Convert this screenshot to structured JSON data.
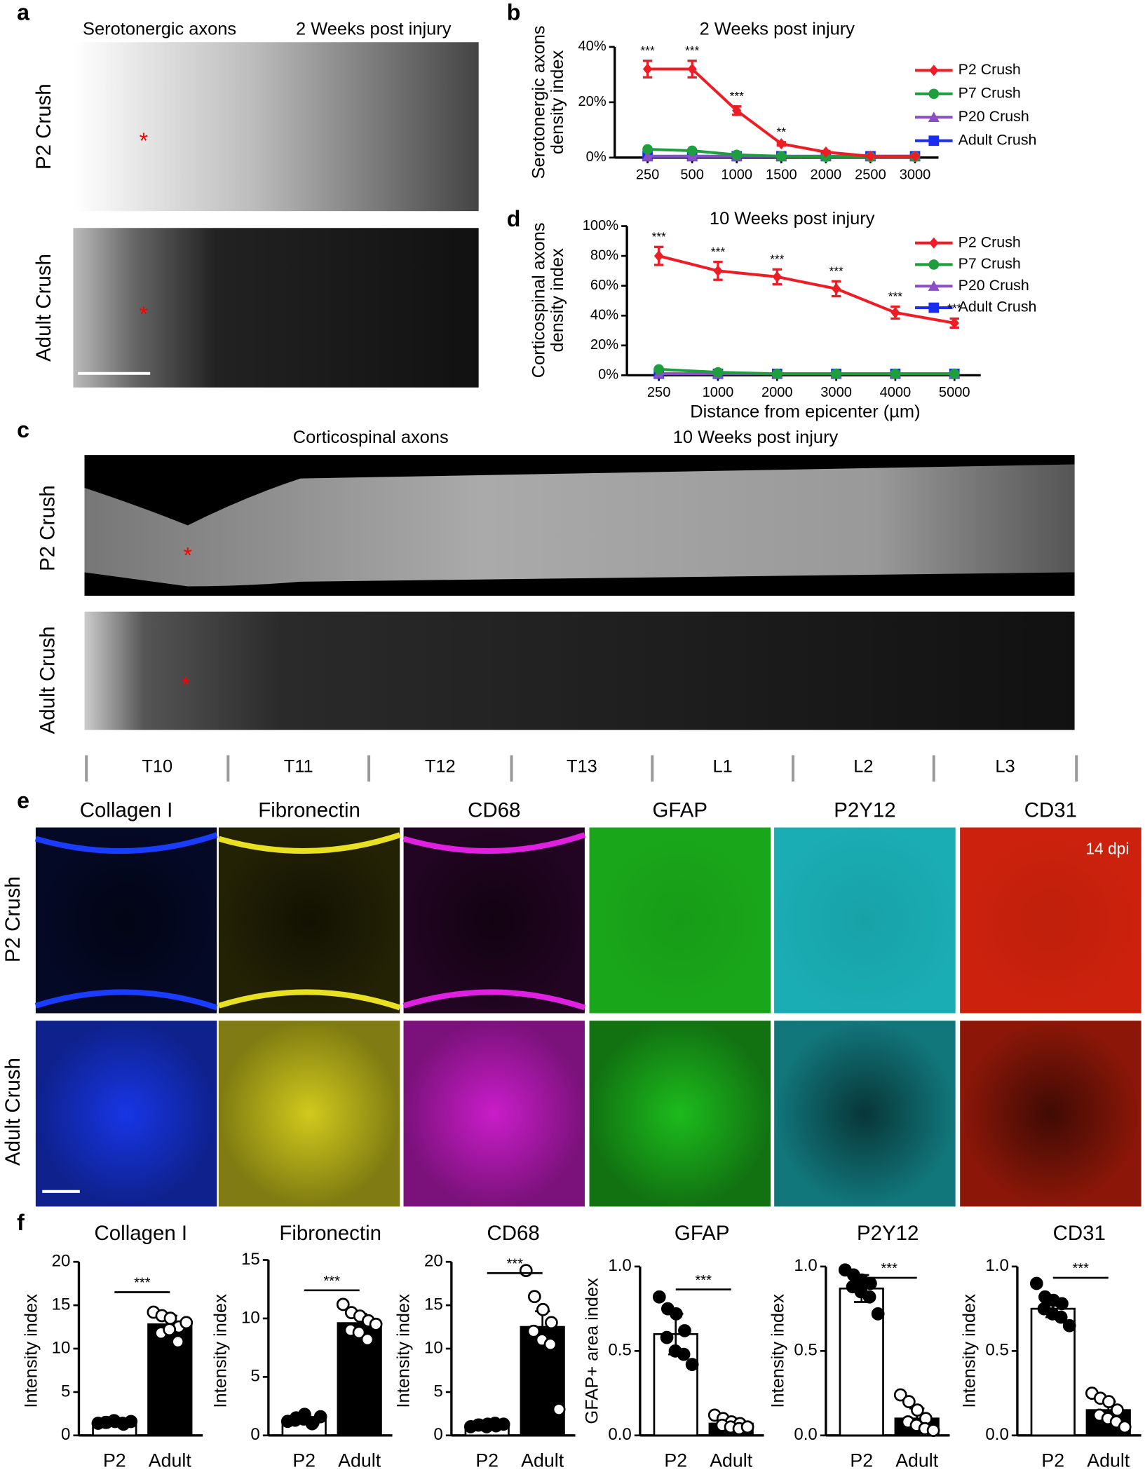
{
  "panels": {
    "letters": [
      "a",
      "b",
      "c",
      "d",
      "e",
      "f"
    ]
  },
  "panel_a": {
    "left_title": "Serotonergic axons",
    "right_title": "2 Weeks post injury",
    "rows": [
      "P2 Crush",
      "Adult Crush"
    ],
    "markers": [
      "*",
      "*"
    ]
  },
  "panel_c": {
    "left_title": "Corticospinal axons",
    "right_title": "10 Weeks post injury",
    "rows": [
      "P2 Crush",
      "Adult Crush"
    ],
    "markers": [
      "*",
      "*"
    ],
    "segments": [
      "T10",
      "T11",
      "T12",
      "T13",
      "L1",
      "L2",
      "L3"
    ]
  },
  "panel_e": {
    "columns": [
      "Collagen I",
      "Fibronectin",
      "CD68",
      "GFAP",
      "P2Y12",
      "CD31"
    ],
    "rows": [
      "P2 Crush",
      "Adult Crush"
    ],
    "annotation": "14 dpi"
  },
  "chart_data": [
    {
      "type": "line",
      "title": "2 Weeks post injury",
      "ylabel": [
        "Serotonergic axons",
        "density index"
      ],
      "categories": [
        "250",
        "500",
        "1000",
        "1500",
        "2000",
        "2500",
        "3000"
      ],
      "ylim": [
        0,
        40
      ],
      "yticks": [
        {
          "value": 0,
          "label": "0%"
        },
        {
          "value": 20,
          "label": "20%"
        },
        {
          "value": 40,
          "label": "40%"
        }
      ],
      "annotations": [
        "***",
        "***",
        "***",
        "**",
        null,
        null,
        null
      ],
      "series": [
        {
          "name": "P2 Crush",
          "color": "#ee1c25",
          "marker": "diamond",
          "values": [
            32,
            32,
            17,
            5,
            2,
            0.5,
            0.5
          ],
          "errors": [
            3,
            3,
            1.5,
            0.6,
            0.4,
            0.2,
            0.2
          ]
        },
        {
          "name": "P7 Crush",
          "color": "#1e9e3c",
          "marker": "circle",
          "values": [
            3,
            2.5,
            1,
            0.5,
            0.3,
            0.3,
            0.3
          ]
        },
        {
          "name": "P20 Crush",
          "color": "#8a4fc4",
          "marker": "triangle",
          "values": [
            0.5,
            0.5,
            0.5,
            0.5,
            0.5,
            0.5,
            0.5
          ]
        },
        {
          "name": "Adult Crush",
          "color": "#1a2cf0",
          "marker": "square",
          "values": [
            0.5,
            0.5,
            0.5,
            0.5,
            0.5,
            0.5,
            0.5
          ]
        }
      ]
    },
    {
      "type": "line",
      "title": "10 Weeks post injury",
      "ylabel": [
        "Corticospinal axons",
        "density index"
      ],
      "xlabel": "Distance from epicenter (µm)",
      "categories": [
        "250",
        "1000",
        "2000",
        "3000",
        "4000",
        "5000"
      ],
      "ylim": [
        0,
        100
      ],
      "yticks": [
        {
          "value": 0,
          "label": "0%"
        },
        {
          "value": 20,
          "label": "20%"
        },
        {
          "value": 40,
          "label": "40%"
        },
        {
          "value": 60,
          "label": "60%"
        },
        {
          "value": 80,
          "label": "80%"
        },
        {
          "value": 100,
          "label": "100%"
        }
      ],
      "annotations": [
        "***",
        "***",
        "***",
        "***",
        "***",
        "***"
      ],
      "series": [
        {
          "name": "P2 Crush",
          "color": "#ee1c25",
          "marker": "diamond",
          "values": [
            80,
            70,
            66,
            58,
            42,
            35
          ],
          "errors": [
            6,
            6,
            5,
            5,
            4,
            3
          ]
        },
        {
          "name": "P7 Crush",
          "color": "#1e9e3c",
          "marker": "circle",
          "values": [
            4,
            2,
            1,
            1,
            1,
            1
          ]
        },
        {
          "name": "P20 Crush",
          "color": "#8a4fc4",
          "marker": "triangle",
          "values": [
            1,
            1,
            1,
            1,
            1,
            1
          ]
        },
        {
          "name": "Adult Crush",
          "color": "#1a2cf0",
          "marker": "square",
          "values": [
            1,
            1,
            1,
            1,
            1,
            1
          ]
        }
      ]
    },
    {
      "type": "bar",
      "title": "Collagen I",
      "ylabel": "Intensity index",
      "categories": [
        "P2",
        "Adult"
      ],
      "colors": [
        "#ffffff",
        "#000000"
      ],
      "point_colors": [
        "#000000",
        "#ffffff"
      ],
      "values": [
        1.5,
        12.8
      ],
      "errors": [
        0.2,
        1.0
      ],
      "points": [
        [
          1.4,
          1.5,
          1.6,
          1.3,
          1.5,
          1.7,
          1.4,
          1.6
        ],
        [
          14.2,
          13.8,
          13.5,
          12.5,
          11.8,
          12.2,
          10.8,
          13.0
        ]
      ],
      "ylim": [
        0,
        20
      ],
      "yticks": [
        0,
        5,
        10,
        15,
        20
      ],
      "annotation": "***"
    },
    {
      "type": "bar",
      "title": "Fibronectin",
      "ylabel": "Intensity index",
      "categories": [
        "P2",
        "Adult"
      ],
      "colors": [
        "#ffffff",
        "#000000"
      ],
      "point_colors": [
        "#000000",
        "#ffffff"
      ],
      "values": [
        1.3,
        9.6
      ],
      "errors": [
        0.3,
        0.8
      ],
      "points": [
        [
          1.2,
          1.5,
          1.8,
          1.1,
          1.3,
          1.4,
          1.0,
          1.6
        ],
        [
          11.2,
          10.5,
          10.2,
          9.8,
          9.0,
          8.8,
          8.2,
          9.5
        ]
      ],
      "ylim": [
        0,
        15
      ],
      "yticks": [
        0,
        5,
        10,
        15
      ],
      "annotation": "***"
    },
    {
      "type": "bar",
      "title": "CD68",
      "ylabel": "Intensity index",
      "categories": [
        "P2",
        "Adult"
      ],
      "colors": [
        "#ffffff",
        "#000000"
      ],
      "point_colors": [
        "#000000",
        "#ffffff"
      ],
      "values": [
        1.2,
        12.5
      ],
      "errors": [
        0.2,
        1.8
      ],
      "points": [
        [
          1.0,
          1.2,
          1.3,
          1.1,
          1.2,
          1.0,
          1.4,
          1.3
        ],
        [
          19,
          16,
          14.5,
          13,
          12,
          11,
          10.5,
          3
        ]
      ],
      "ylim": [
        0,
        20
      ],
      "yticks": [
        0,
        5,
        10,
        15,
        20
      ],
      "annotation": "***"
    },
    {
      "type": "bar",
      "title": "GFAP",
      "ylabel": "GFAP+ area index",
      "categories": [
        "P2",
        "Adult"
      ],
      "colors": [
        "#ffffff",
        "#000000"
      ],
      "point_colors": [
        "#000000",
        "#ffffff"
      ],
      "values": [
        0.6,
        0.07
      ],
      "errors": [
        0.12,
        0.03
      ],
      "points": [
        [
          0.82,
          0.75,
          0.72,
          0.62,
          0.58,
          0.5,
          0.48,
          0.42
        ],
        [
          0.12,
          0.1,
          0.08,
          0.07,
          0.06,
          0.05,
          0.04,
          0.05
        ]
      ],
      "ylim": [
        0,
        1
      ],
      "yticks": [
        {
          "value": 0,
          "label": "0.0"
        },
        {
          "value": 0.5,
          "label": "0.5"
        },
        {
          "value": 1,
          "label": "1.0"
        }
      ],
      "annotation": "***"
    },
    {
      "type": "bar",
      "title": "P2Y12",
      "ylabel": "Intensity  index",
      "categories": [
        "P2",
        "Adult"
      ],
      "colors": [
        "#ffffff",
        "#000000"
      ],
      "point_colors": [
        "#000000",
        "#ffffff"
      ],
      "values": [
        0.87,
        0.1
      ],
      "errors": [
        0.08,
        0.06
      ],
      "points": [
        [
          0.98,
          0.95,
          0.92,
          0.9,
          0.88,
          0.85,
          0.82,
          0.72
        ],
        [
          0.24,
          0.2,
          0.15,
          0.1,
          0.08,
          0.06,
          0.04,
          0.03
        ]
      ],
      "ylim": [
        0,
        1
      ],
      "yticks": [
        {
          "value": 0,
          "label": "0.0"
        },
        {
          "value": 0.5,
          "label": "0.5"
        },
        {
          "value": 1,
          "label": "1.0"
        }
      ],
      "annotation": "***"
    },
    {
      "type": "bar",
      "title": "CD31",
      "ylabel": "Intensity index",
      "categories": [
        "P2",
        "Adult"
      ],
      "colors": [
        "#ffffff",
        "#000000"
      ],
      "point_colors": [
        "#000000",
        "#ffffff"
      ],
      "values": [
        0.75,
        0.15
      ],
      "errors": [
        0.05,
        0.05
      ],
      "points": [
        [
          0.9,
          0.82,
          0.8,
          0.78,
          0.75,
          0.72,
          0.7,
          0.65
        ],
        [
          0.25,
          0.22,
          0.2,
          0.15,
          0.12,
          0.1,
          0.08,
          0.05
        ]
      ],
      "ylim": [
        0,
        1
      ],
      "yticks": [
        {
          "value": 0,
          "label": "0.0"
        },
        {
          "value": 0.5,
          "label": "0.5"
        },
        {
          "value": 1,
          "label": "1.0"
        }
      ],
      "annotation": "***"
    }
  ]
}
